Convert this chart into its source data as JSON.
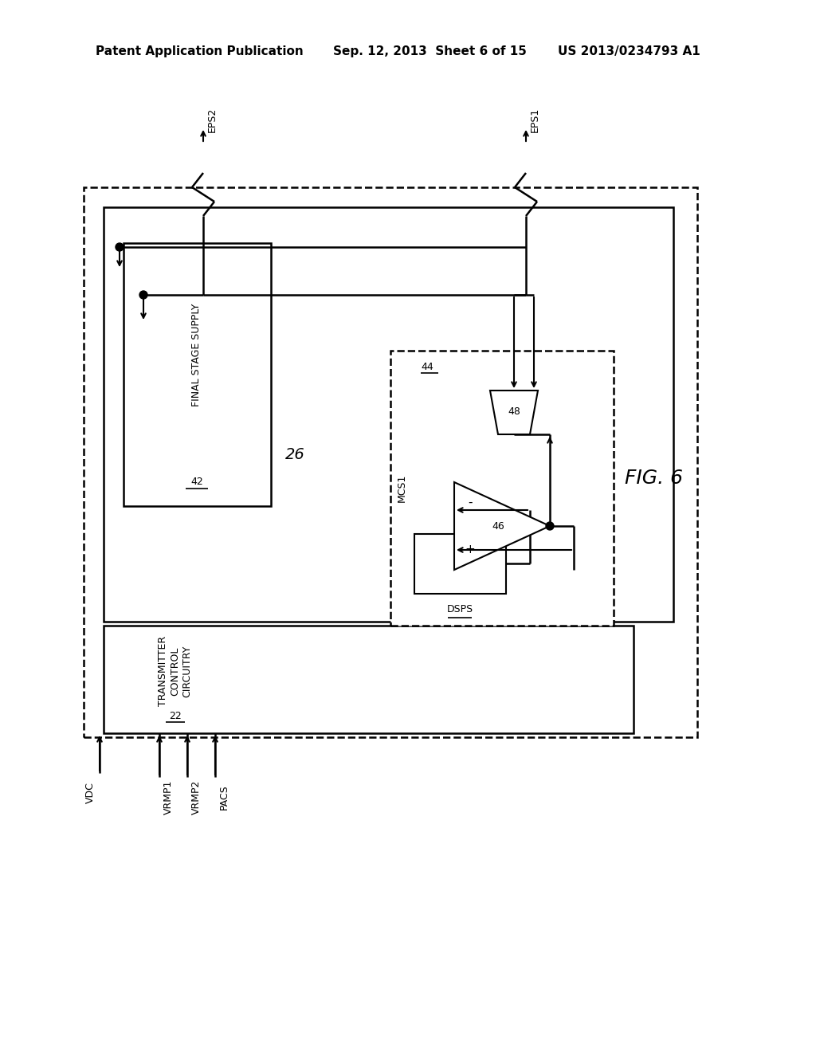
{
  "bg_color": "#ffffff",
  "header_left": "Patent Application Publication",
  "header_center": "Sep. 12, 2013  Sheet 6 of 15",
  "header_right": "US 2013/0234793 A1",
  "fig_label": "FIG. 6"
}
